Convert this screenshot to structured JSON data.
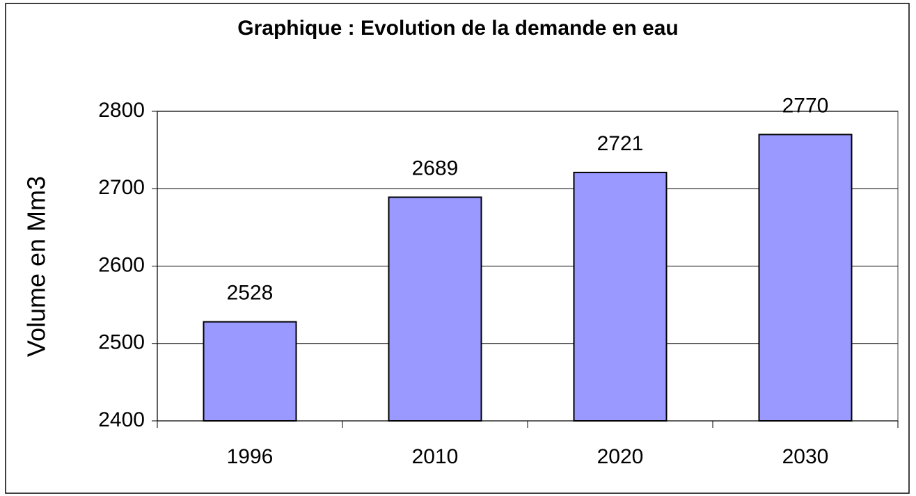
{
  "chart_data": {
    "type": "bar",
    "title": "Graphique : Evolution de la demande en eau",
    "y_label": "Volume en Mm3",
    "categories": [
      "1996",
      "2010",
      "2020",
      "2030"
    ],
    "values": [
      2528,
      2689,
      2721,
      2770
    ],
    "color": "#9999ff",
    "ylim": [
      2400,
      2800
    ],
    "yticks": [
      2400,
      2500,
      2600,
      2700,
      2800
    ],
    "grid": true,
    "data_labels": true
  }
}
